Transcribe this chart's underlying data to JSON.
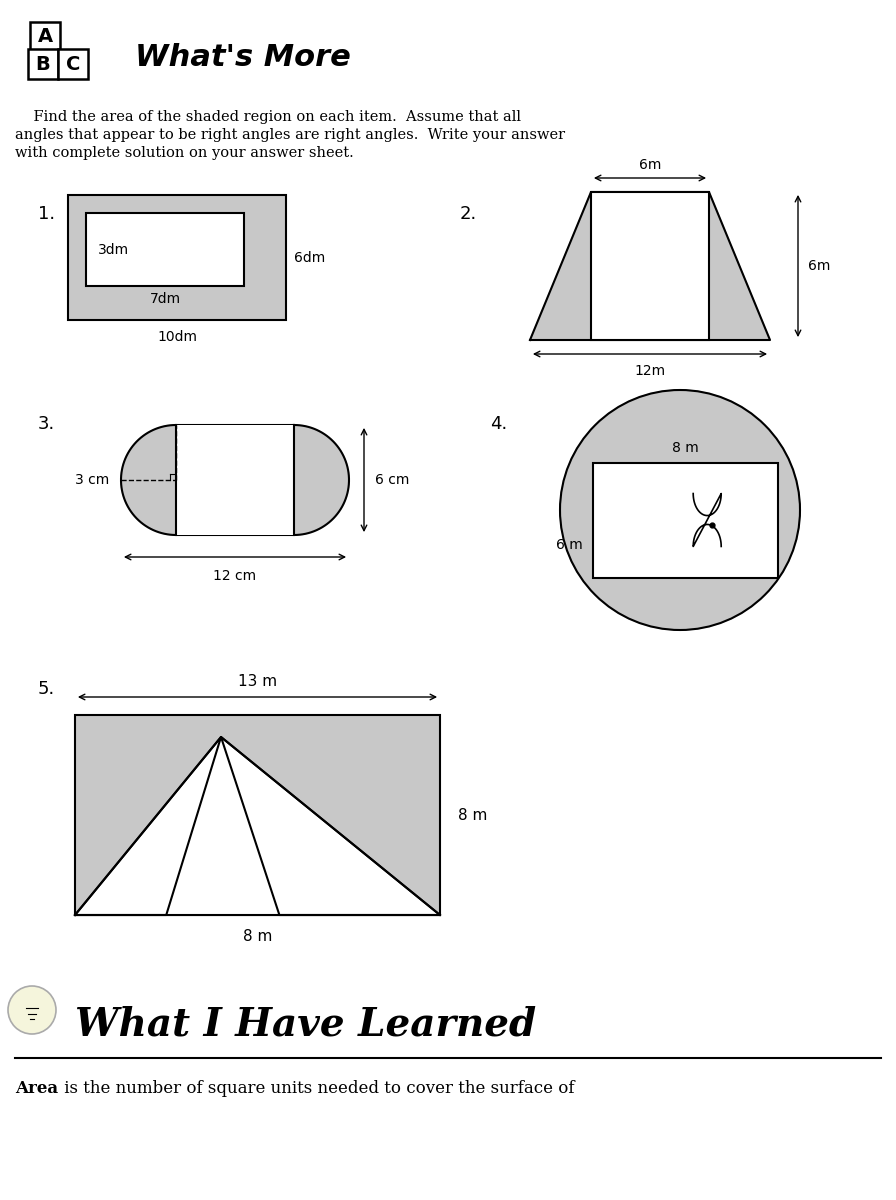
{
  "bg_color": "#ffffff",
  "title_text": "What's More",
  "instruction_line1": "    Find the area of the shaded region on each item.  Assume that all",
  "instruction_line2": "angles that appear to be right angles are right angles.  Write your answer",
  "instruction_line3": "with complete solution on your answer sheet.",
  "item1_label": "1.",
  "item1_dim_inner_h": "3dm",
  "item1_dim_inner_w": "7dm",
  "item1_dim_outer_w": "10dm",
  "item1_dim_outer_h": "6dm",
  "item2_label": "2.",
  "item2_dim_top": "6m",
  "item2_dim_side": "6m",
  "item2_dim_bottom": "12m",
  "item3_label": "3.",
  "item3_dim_radius": "3 cm",
  "item3_dim_height": "6 cm",
  "item3_dim_width": "12 cm",
  "item4_label": "4.",
  "item4_dim_top": "8 m",
  "item4_dim_side": "6 m",
  "item5_label": "5.",
  "item5_dim_top": "13 m",
  "item5_dim_bottom": "8 m",
  "item5_dim_side": "8 m",
  "footer_title": "What I Have Learned",
  "footer_text_bold": "Area",
  "footer_text_rest": " is the number of square units needed to cover the surface of",
  "gray": "#c8c8c8",
  "white": "#ffffff",
  "black": "#000000"
}
